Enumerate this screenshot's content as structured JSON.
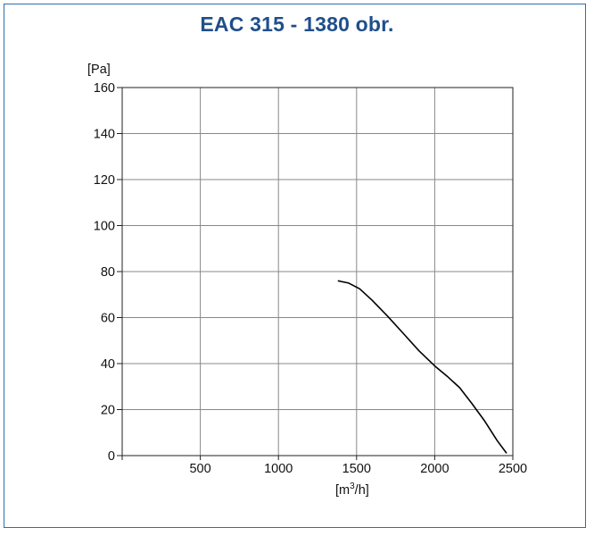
{
  "chart_data": {
    "type": "line",
    "title": "EAC 315 - 1380 obr.",
    "ylabel": "[Pa]",
    "xlabel_base": "[m",
    "xlabel_sup": "3",
    "xlabel_tail": "/h]",
    "xlim": [
      0,
      2500
    ],
    "ylim": [
      0,
      160
    ],
    "x_ticks": [
      0,
      500,
      1000,
      1500,
      2000,
      2500
    ],
    "x_tick_labels": [
      "500",
      "1000",
      "1500",
      "2000",
      "2500"
    ],
    "y_ticks": [
      0,
      20,
      40,
      60,
      80,
      100,
      120,
      140,
      160
    ],
    "y_tick_labels": [
      "0",
      "20",
      "40",
      "60",
      "80",
      "100",
      "120",
      "140",
      "160"
    ],
    "grid": true,
    "series": [
      {
        "x": [
          1380,
          1450,
          1520,
          1600,
          1700,
          1800,
          1900,
          2000,
          2080,
          2160,
          2240,
          2320,
          2400,
          2460
        ],
        "y": [
          76,
          75,
          72.5,
          67.5,
          60.5,
          53,
          45.5,
          39,
          34.5,
          29.5,
          22.5,
          15,
          6.5,
          1
        ]
      }
    ],
    "line_color": "#000000"
  }
}
